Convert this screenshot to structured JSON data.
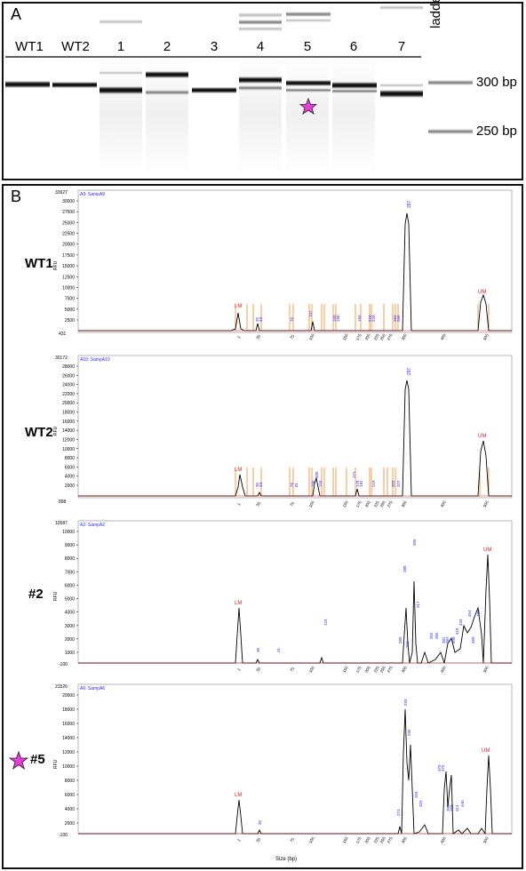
{
  "panelA": {
    "label": "A",
    "lanes": [
      "WT1",
      "WT2",
      "1",
      "2",
      "3",
      "4",
      "5",
      "6",
      "7"
    ],
    "ladder_label": "ladder",
    "bp_labels": [
      "300 bp",
      "250 bp"
    ],
    "star_color": "#e83fdc"
  },
  "panelB": {
    "label": "B",
    "xaxis_title": "Size (bp)",
    "x_ticks": [
      "1",
      "35",
      "75",
      "100",
      "150",
      "175",
      "200",
      "225",
      "250",
      "275",
      "300",
      "400",
      "500"
    ],
    "electropherograms": [
      {
        "sample_label": "WT1",
        "title": "A9: SampA9",
        "ymax_label": "33927",
        "ymin_label": "431",
        "y_ticks": [
          "30000",
          "27500",
          "25000",
          "22500",
          "20000",
          "17500",
          "15000",
          "12500",
          "10000",
          "7500",
          "5000",
          "2500"
        ],
        "rfu": "RFU",
        "lm": "LM",
        "um": "UM",
        "main_peak": "297",
        "small_peaks": [
          "35",
          "43",
          "76",
          "107",
          "160",
          "166",
          "194",
          "216",
          "220",
          "262",
          "266"
        ]
      },
      {
        "sample_label": "WT2",
        "title": "A10: SampA10",
        "ymax_label": "30172",
        "ymin_label": "898",
        "y_ticks": [
          "28000",
          "26000",
          "24000",
          "22000",
          "20000",
          "18000",
          "16000",
          "14000",
          "12000",
          "10000",
          "8000",
          "6000",
          "4000",
          "2000"
        ],
        "rfu": "RFU",
        "lm": "LM",
        "um": "UM",
        "main_peak": "297",
        "small_peaks": [
          "35",
          "43",
          "76",
          "81",
          "106",
          "105",
          "116",
          "171",
          "178",
          "182",
          "219",
          "322",
          "327"
        ]
      },
      {
        "sample_label": "#2",
        "title": "A2: SampA2",
        "ymax_label": "10587",
        "ymin_label": "-100",
        "y_ticks": [
          "10000",
          "9000",
          "8000",
          "7000",
          "6000",
          "5000",
          "4000",
          "3000",
          "2000",
          "1000"
        ],
        "rfu": "RFU",
        "lm": "LM",
        "um": "UM",
        "peaks": [
          "305",
          "288",
          "317",
          "124",
          "36",
          "41",
          "352",
          "365",
          "381",
          "387",
          "408",
          "418",
          "434",
          "454",
          "460",
          "480",
          "285",
          "292"
        ]
      },
      {
        "sample_label": "#5",
        "title": "A6: SampA6",
        "ymax_label": "21526",
        "ymin_label": "-100",
        "y_ticks": [
          "20000",
          "18000",
          "16000",
          "14000",
          "12000",
          "10000",
          "8000",
          "6000",
          "4000",
          "2000"
        ],
        "rfu": "RFU",
        "lm": "LM",
        "um": "UM",
        "peaks": [
          "293",
          "295",
          "274",
          "316",
          "323",
          "370",
          "375",
          "385",
          "403",
          "413",
          "440",
          "35"
        ]
      }
    ]
  },
  "colors": {
    "trace": "#000000",
    "marker_red": "#d22020",
    "peak_blue": "#2a2aff",
    "orange_ticks": "#f08a20",
    "star": "#e83fdc"
  }
}
